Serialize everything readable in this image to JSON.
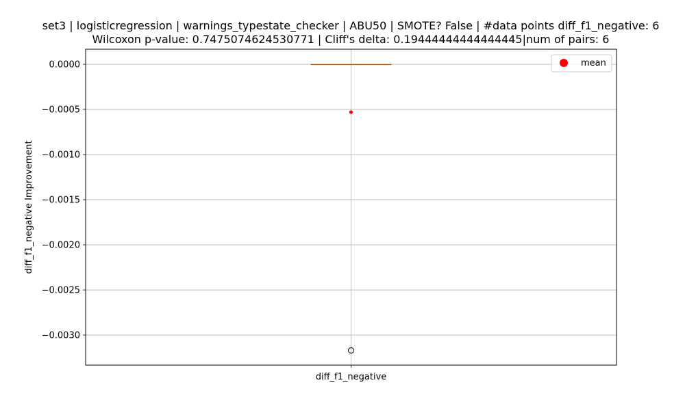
{
  "chart_data": {
    "type": "box",
    "title": "set3 | logisticregression | warnings_typestate_checker | ABU50 | SMOTE? False | #data points diff_f1_negative: 6",
    "subtitle": "Wilcoxon p-value: 0.7475074624530771 | Cliff's delta: 0.19444444444444445|num of pairs: 6",
    "xlabel": "",
    "ylabel": "diff_f1_negative Improvement",
    "categories": [
      "diff_f1_negative"
    ],
    "ylim": [
      -0.003333,
      0.000167
    ],
    "yticks": [
      0.0,
      -0.0005,
      -0.001,
      -0.0015,
      -0.002,
      -0.0025,
      -0.003
    ],
    "ytick_labels": [
      "0.0000",
      "−0.0005",
      "−0.0010",
      "−0.0015",
      "−0.0020",
      "−0.0025",
      "−0.0030"
    ],
    "grid": true,
    "box": {
      "q1": 0.0,
      "median": 0.0,
      "q3": 0.0,
      "whisker_low": 0.0,
      "whisker_high": 0.0,
      "mean": -0.00053,
      "outliers": [
        -0.00317
      ]
    },
    "legend": {
      "placement": "top-right",
      "entries": [
        {
          "label": "mean",
          "color": "#ff0000"
        }
      ]
    },
    "colors": {
      "median": "#ff7f0e",
      "mean": "#ff0000",
      "grid": "#b0b0b0",
      "box": "#000000"
    }
  }
}
